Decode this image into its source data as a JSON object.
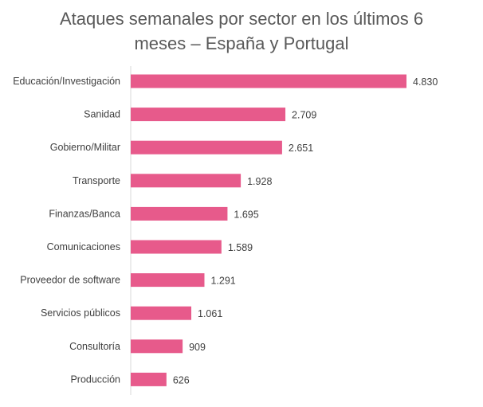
{
  "chart_data": {
    "type": "bar",
    "orientation": "horizontal",
    "title_lines": [
      "Ataques semanales por sector en los últimos 6",
      "meses – España y Portugal"
    ],
    "categories": [
      "Educación/Investigación",
      "Sanidad",
      "Gobierno/Militar",
      "Transporte",
      "Finanzas/Banca",
      "Comunicaciones",
      "Proveedor de software",
      "Servicios públicos",
      "Consultoría",
      "Producción"
    ],
    "values": [
      4830,
      2709,
      2651,
      1928,
      1695,
      1589,
      1291,
      1061,
      909,
      626
    ],
    "value_labels": [
      "4.830",
      "2.709",
      "2.651",
      "1.928",
      "1.695",
      "1.589",
      "1.291",
      "1.061",
      "909",
      "626"
    ],
    "bar_color": "#e75a8b",
    "grid": false,
    "legend": "none"
  }
}
